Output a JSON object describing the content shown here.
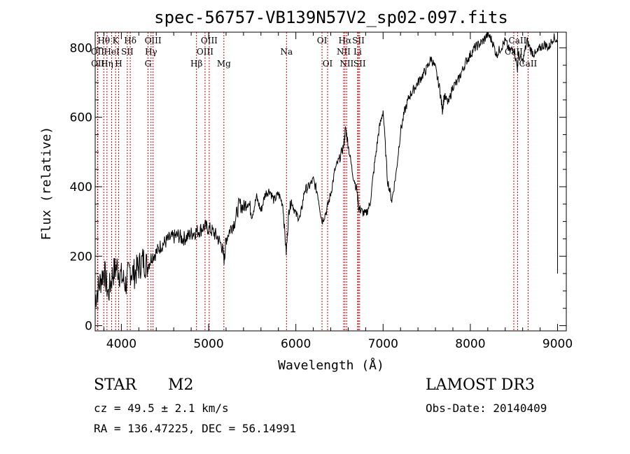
{
  "chart_data": {
    "type": "line",
    "title": "spec-56757-VB139N57V2_sp02-097.fits",
    "xlabel": "Wavelength (Å)",
    "ylabel": "Flux (relative)",
    "xlim": [
      3700,
      9100
    ],
    "ylim": [
      -15,
      845
    ],
    "xticks": [
      4000,
      5000,
      6000,
      7000,
      8000,
      9000
    ],
    "yticks": [
      0,
      200,
      400,
      600,
      800
    ],
    "line_color": "#000000",
    "marker_color": "#cc0000",
    "spectrum": {
      "x": [
        3700,
        3750,
        3800,
        3850,
        3900,
        3950,
        4000,
        4050,
        4100,
        4150,
        4200,
        4250,
        4300,
        4350,
        4400,
        4450,
        4500,
        4550,
        4600,
        4650,
        4700,
        4750,
        4800,
        4850,
        4900,
        4950,
        5000,
        5050,
        5100,
        5150,
        5180,
        5200,
        5250,
        5300,
        5350,
        5400,
        5450,
        5500,
        5550,
        5600,
        5650,
        5700,
        5750,
        5800,
        5850,
        5890,
        5920,
        5950,
        6000,
        6050,
        6100,
        6150,
        6200,
        6250,
        6300,
        6350,
        6400,
        6450,
        6500,
        6550,
        6570,
        6600,
        6650,
        6700,
        6720,
        6750,
        6800,
        6850,
        6900,
        6950,
        7000,
        7050,
        7100,
        7150,
        7200,
        7250,
        7300,
        7350,
        7400,
        7450,
        7500,
        7550,
        7600,
        7650,
        7680,
        7700,
        7750,
        7800,
        7850,
        7900,
        7950,
        8000,
        8050,
        8100,
        8150,
        8200,
        8250,
        8300,
        8350,
        8400,
        8450,
        8500,
        8540,
        8550,
        8600,
        8650,
        8700,
        8750,
        8800,
        8850,
        8900,
        8950,
        9000
      ],
      "y": [
        80,
        120,
        160,
        90,
        150,
        170,
        140,
        120,
        160,
        150,
        170,
        190,
        170,
        200,
        210,
        230,
        240,
        250,
        255,
        260,
        250,
        255,
        265,
        270,
        275,
        285,
        280,
        270,
        255,
        230,
        190,
        250,
        280,
        300,
        350,
        340,
        360,
        320,
        370,
        330,
        380,
        390,
        360,
        380,
        350,
        210,
        330,
        360,
        320,
        310,
        390,
        400,
        420,
        380,
        300,
        330,
        380,
        450,
        480,
        520,
        570,
        520,
        440,
        390,
        340,
        330,
        320,
        350,
        460,
        560,
        620,
        420,
        360,
        440,
        560,
        620,
        660,
        680,
        700,
        720,
        740,
        770,
        740,
        680,
        620,
        660,
        640,
        690,
        700,
        730,
        760,
        780,
        800,
        810,
        820,
        840,
        820,
        780,
        800,
        820,
        790,
        800,
        740,
        780,
        760,
        820,
        790,
        780,
        800,
        810,
        800,
        830,
        820
      ]
    },
    "lines": [
      {
        "name": "Hθ",
        "wavelength": 3798,
        "row": 1
      },
      {
        "name": "OII",
        "wavelength": 3727,
        "row": 2
      },
      {
        "name": "OII",
        "wavelength": 3730,
        "row": 3
      },
      {
        "name": "Hη",
        "wavelength": 3835,
        "row": 3
      },
      {
        "name": "HeI",
        "wavelength": 3889,
        "row": 2
      },
      {
        "name": "K",
        "wavelength": 3934,
        "row": 1
      },
      {
        "name": "SII",
        "wavelength": 4068,
        "row": 2
      },
      {
        "name": "H",
        "wavelength": 3969,
        "row": 3
      },
      {
        "name": "Hδ",
        "wavelength": 4102,
        "row": 1
      },
      {
        "name": "OIII",
        "wavelength": 4363,
        "row": 1
      },
      {
        "name": "Hγ",
        "wavelength": 4340,
        "row": 2
      },
      {
        "name": "G",
        "wavelength": 4305,
        "row": 3
      },
      {
        "name": "Hβ",
        "wavelength": 4861,
        "row": 3
      },
      {
        "name": "OIII",
        "wavelength": 4959,
        "row": 2
      },
      {
        "name": "OIII",
        "wavelength": 5007,
        "row": 1
      },
      {
        "name": "Mg",
        "wavelength": 5175,
        "row": 3
      },
      {
        "name": "Na",
        "wavelength": 5893,
        "row": 2
      },
      {
        "name": "OI",
        "wavelength": 6300,
        "row": 1
      },
      {
        "name": "OI",
        "wavelength": 6364,
        "row": 3
      },
      {
        "name": "Hα",
        "wavelength": 6563,
        "row": 1
      },
      {
        "name": "NII",
        "wavelength": 6548,
        "row": 2
      },
      {
        "name": "NII",
        "wavelength": 6583,
        "row": 3
      },
      {
        "name": "SII",
        "wavelength": 6717,
        "row": 1
      },
      {
        "name": "Li",
        "wavelength": 6708,
        "row": 2
      },
      {
        "name": "SII",
        "wavelength": 6731,
        "row": 3
      },
      {
        "name": "CaII",
        "wavelength": 8542,
        "row": 1
      },
      {
        "name": "CaII",
        "wavelength": 8498,
        "row": 2
      },
      {
        "name": "CaII",
        "wavelength": 8662,
        "row": 3
      }
    ]
  },
  "info": {
    "object_class": "STAR",
    "subclass": "M2",
    "cz": "cz = 49.5 ± 2.1 km/s",
    "coords": "RA = 136.47225, DEC =  56.14991",
    "survey": "LAMOST DR3",
    "obs_date": "Obs-Date: 20140409"
  }
}
